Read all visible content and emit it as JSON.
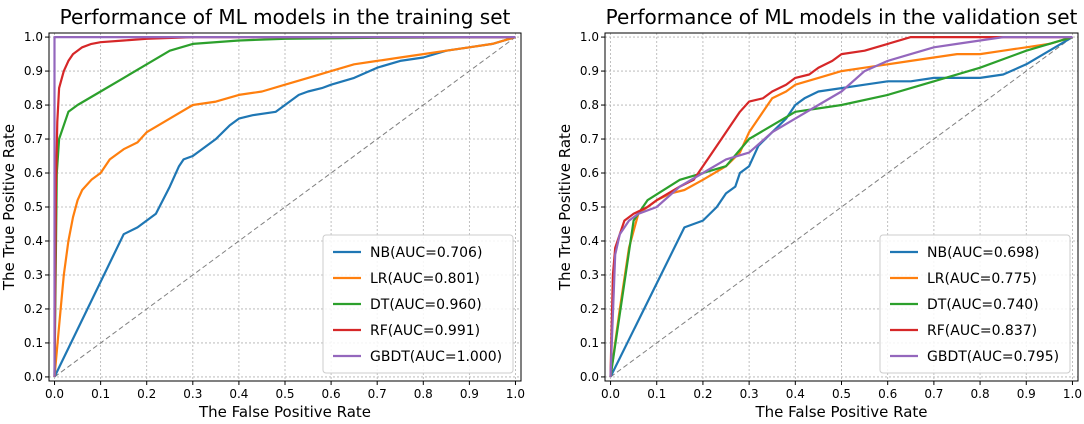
{
  "chart_data": [
    {
      "type": "line",
      "title": "Performance of ML models in the training set",
      "xlabel": "The False Positive Rate",
      "ylabel": "The True Positive Rate",
      "xlim": [
        0,
        1
      ],
      "ylim": [
        0,
        1
      ],
      "xticks": [
        "0.0",
        "0.1",
        "0.2",
        "0.3",
        "0.4",
        "0.5",
        "0.6",
        "0.7",
        "0.8",
        "0.9",
        "1.0"
      ],
      "yticks": [
        "0.0",
        "0.1",
        "0.2",
        "0.3",
        "0.4",
        "0.5",
        "0.6",
        "0.7",
        "0.8",
        "0.9",
        "1.0"
      ],
      "grid": true,
      "legend_position": "lower-right",
      "diagonal_reference": true,
      "series": [
        {
          "name": "NB(AUC=0.706)",
          "color": "#1f77b4",
          "x": [
            0,
            0.15,
            0.18,
            0.22,
            0.25,
            0.27,
            0.28,
            0.3,
            0.32,
            0.35,
            0.38,
            0.4,
            0.43,
            0.48,
            0.5,
            0.53,
            0.55,
            0.58,
            0.6,
            0.65,
            0.7,
            0.75,
            0.8,
            0.85,
            0.9,
            0.95,
            1.0
          ],
          "y": [
            0,
            0.42,
            0.44,
            0.48,
            0.56,
            0.62,
            0.64,
            0.65,
            0.67,
            0.7,
            0.74,
            0.76,
            0.77,
            0.78,
            0.8,
            0.83,
            0.84,
            0.85,
            0.86,
            0.88,
            0.91,
            0.93,
            0.94,
            0.96,
            0.97,
            0.98,
            1.0
          ]
        },
        {
          "name": "LR(AUC=0.801)",
          "color": "#ff7f0e",
          "x": [
            0,
            0.01,
            0.02,
            0.03,
            0.04,
            0.05,
            0.06,
            0.08,
            0.1,
            0.12,
            0.15,
            0.18,
            0.2,
            0.25,
            0.3,
            0.35,
            0.4,
            0.45,
            0.5,
            0.55,
            0.6,
            0.65,
            0.7,
            0.75,
            0.8,
            0.85,
            0.9,
            0.95,
            1.0
          ],
          "y": [
            0,
            0.15,
            0.3,
            0.4,
            0.47,
            0.52,
            0.55,
            0.58,
            0.6,
            0.64,
            0.67,
            0.69,
            0.72,
            0.76,
            0.8,
            0.81,
            0.83,
            0.84,
            0.86,
            0.88,
            0.9,
            0.92,
            0.93,
            0.94,
            0.95,
            0.96,
            0.97,
            0.98,
            1.0
          ]
        },
        {
          "name": "DT(AUC=0.960)",
          "color": "#2ca02c",
          "x": [
            0,
            0.005,
            0.01,
            0.03,
            0.05,
            0.1,
            0.15,
            0.2,
            0.25,
            0.3,
            0.4,
            0.5,
            0.7,
            1.0
          ],
          "y": [
            0,
            0.6,
            0.7,
            0.78,
            0.8,
            0.84,
            0.88,
            0.92,
            0.96,
            0.98,
            0.99,
            0.995,
            0.998,
            1.0
          ]
        },
        {
          "name": "RF(AUC=0.991)",
          "color": "#d62728",
          "x": [
            0,
            0.003,
            0.006,
            0.01,
            0.02,
            0.03,
            0.04,
            0.06,
            0.08,
            0.1,
            0.15,
            0.2,
            0.3,
            0.5,
            1.0
          ],
          "y": [
            0,
            0.55,
            0.75,
            0.85,
            0.9,
            0.93,
            0.95,
            0.97,
            0.98,
            0.985,
            0.99,
            0.995,
            1.0,
            1.0,
            1.0
          ]
        },
        {
          "name": "GBDT(AUC=1.000)",
          "color": "#9467bd",
          "x": [
            0,
            0,
            1.0
          ],
          "y": [
            0,
            1.0,
            1.0
          ]
        }
      ]
    },
    {
      "type": "line",
      "title": "Performance of ML models in the validation set",
      "xlabel": "The False Positive Rate",
      "ylabel": "The True Positive Rate",
      "xlim": [
        0,
        1
      ],
      "ylim": [
        0,
        1
      ],
      "xticks": [
        "0.0",
        "0.1",
        "0.2",
        "0.3",
        "0.4",
        "0.5",
        "0.6",
        "0.7",
        "0.8",
        "0.9",
        "1.0"
      ],
      "yticks": [
        "0.0",
        "0.1",
        "0.2",
        "0.3",
        "0.4",
        "0.5",
        "0.6",
        "0.7",
        "0.8",
        "0.9",
        "1.0"
      ],
      "grid": true,
      "legend_position": "lower-right",
      "diagonal_reference": true,
      "series": [
        {
          "name": "NB(AUC=0.698)",
          "color": "#1f77b4",
          "x": [
            0,
            0.16,
            0.2,
            0.23,
            0.25,
            0.27,
            0.28,
            0.3,
            0.32,
            0.35,
            0.38,
            0.4,
            0.42,
            0.45,
            0.5,
            0.55,
            0.6,
            0.65,
            0.7,
            0.75,
            0.8,
            0.85,
            0.9,
            0.95,
            1.0
          ],
          "y": [
            0,
            0.44,
            0.46,
            0.5,
            0.54,
            0.56,
            0.6,
            0.62,
            0.68,
            0.72,
            0.76,
            0.8,
            0.82,
            0.84,
            0.85,
            0.86,
            0.87,
            0.87,
            0.88,
            0.88,
            0.88,
            0.89,
            0.92,
            0.96,
            1.0
          ]
        },
        {
          "name": "LR(AUC=0.775)",
          "color": "#ff7f0e",
          "x": [
            0,
            0.02,
            0.04,
            0.06,
            0.08,
            0.1,
            0.13,
            0.16,
            0.2,
            0.25,
            0.28,
            0.3,
            0.33,
            0.35,
            0.38,
            0.4,
            0.45,
            0.5,
            0.55,
            0.6,
            0.65,
            0.7,
            0.75,
            0.8,
            0.85,
            0.9,
            0.95,
            1.0
          ],
          "y": [
            0,
            0.2,
            0.38,
            0.48,
            0.5,
            0.52,
            0.54,
            0.55,
            0.58,
            0.62,
            0.66,
            0.72,
            0.78,
            0.82,
            0.84,
            0.86,
            0.88,
            0.9,
            0.91,
            0.92,
            0.93,
            0.94,
            0.95,
            0.95,
            0.96,
            0.97,
            0.98,
            1.0
          ]
        },
        {
          "name": "DT(AUC=0.740)",
          "color": "#2ca02c",
          "x": [
            0,
            0.05,
            0.08,
            0.15,
            0.25,
            0.3,
            0.4,
            0.5,
            0.6,
            0.7,
            0.8,
            0.9,
            1.0
          ],
          "y": [
            0,
            0.46,
            0.52,
            0.58,
            0.62,
            0.7,
            0.78,
            0.8,
            0.83,
            0.87,
            0.91,
            0.96,
            1.0
          ]
        },
        {
          "name": "RF(AUC=0.837)",
          "color": "#d62728",
          "x": [
            0,
            0.005,
            0.01,
            0.02,
            0.03,
            0.05,
            0.08,
            0.1,
            0.15,
            0.18,
            0.2,
            0.22,
            0.25,
            0.28,
            0.3,
            0.33,
            0.35,
            0.38,
            0.4,
            0.43,
            0.45,
            0.48,
            0.5,
            0.55,
            0.6,
            0.65,
            0.7,
            0.75,
            1.0
          ],
          "y": [
            0,
            0.3,
            0.38,
            0.42,
            0.46,
            0.48,
            0.5,
            0.52,
            0.56,
            0.58,
            0.62,
            0.66,
            0.72,
            0.78,
            0.81,
            0.82,
            0.84,
            0.86,
            0.88,
            0.89,
            0.91,
            0.93,
            0.95,
            0.96,
            0.98,
            1.0,
            1.0,
            1.0,
            1.0
          ]
        },
        {
          "name": "GBDT(AUC=0.795)",
          "color": "#9467bd",
          "x": [
            0,
            0.01,
            0.02,
            0.04,
            0.06,
            0.1,
            0.15,
            0.2,
            0.25,
            0.3,
            0.35,
            0.4,
            0.45,
            0.5,
            0.55,
            0.6,
            0.65,
            0.7,
            0.75,
            0.8,
            0.85,
            0.9,
            1.0
          ],
          "y": [
            0,
            0.36,
            0.42,
            0.46,
            0.48,
            0.5,
            0.56,
            0.6,
            0.64,
            0.66,
            0.72,
            0.76,
            0.8,
            0.84,
            0.9,
            0.93,
            0.95,
            0.97,
            0.98,
            0.99,
            1.0,
            1.0,
            1.0
          ]
        }
      ]
    }
  ]
}
